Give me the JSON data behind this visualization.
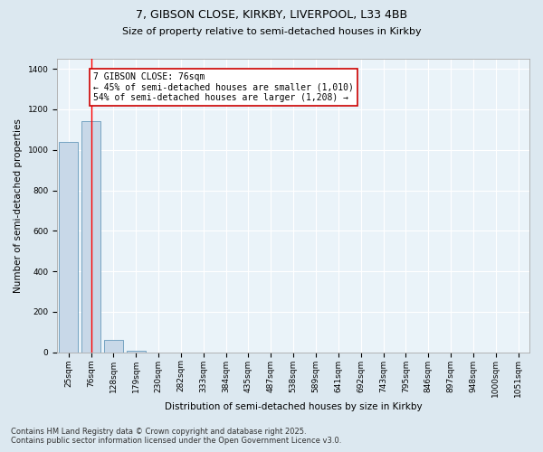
{
  "title_line1": "7, GIBSON CLOSE, KIRKBY, LIVERPOOL, L33 4BB",
  "title_line2": "Size of property relative to semi-detached houses in Kirkby",
  "xlabel": "Distribution of semi-detached houses by size in Kirkby",
  "ylabel": "Number of semi-detached properties",
  "categories": [
    "25sqm",
    "76sqm",
    "128sqm",
    "179sqm",
    "230sqm",
    "282sqm",
    "333sqm",
    "384sqm",
    "435sqm",
    "487sqm",
    "538sqm",
    "589sqm",
    "641sqm",
    "692sqm",
    "743sqm",
    "795sqm",
    "846sqm",
    "897sqm",
    "948sqm",
    "1000sqm",
    "1051sqm"
  ],
  "values": [
    1040,
    1140,
    62,
    8,
    0,
    0,
    0,
    0,
    0,
    0,
    0,
    0,
    0,
    0,
    0,
    0,
    0,
    0,
    0,
    0,
    0
  ],
  "bar_color": "#c8d8e8",
  "bar_edge_color": "#6699bb",
  "red_line_x": 1,
  "annotation_line1": "7 GIBSON CLOSE: 76sqm",
  "annotation_line2": "← 45% of semi-detached houses are smaller (1,010)",
  "annotation_line3": "54% of semi-detached houses are larger (1,208) →",
  "annotation_box_color": "#ffffff",
  "annotation_box_edge_color": "#cc0000",
  "ylim": [
    0,
    1450
  ],
  "yticks": [
    0,
    200,
    400,
    600,
    800,
    1000,
    1200,
    1400
  ],
  "background_color": "#dce8f0",
  "plot_background_color": "#eaf3f9",
  "grid_color": "#ffffff",
  "footer_line1": "Contains HM Land Registry data © Crown copyright and database right 2025.",
  "footer_line2": "Contains public sector information licensed under the Open Government Licence v3.0.",
  "title_fontsize": 9,
  "subtitle_fontsize": 8,
  "axis_label_fontsize": 7.5,
  "tick_fontsize": 6.5,
  "annotation_fontsize": 7,
  "footer_fontsize": 6
}
